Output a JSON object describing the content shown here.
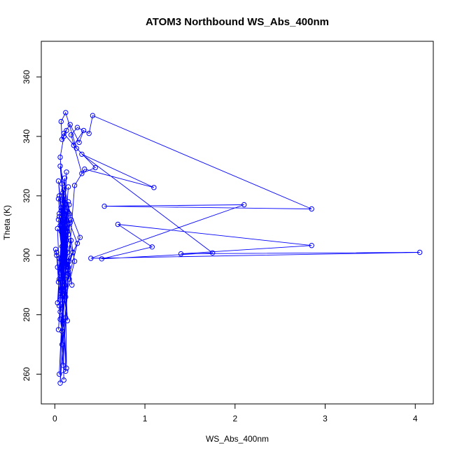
{
  "chart_data": {
    "type": "line",
    "title": "ATOM3 Northbound WS_Abs_400nm",
    "xlabel": "WS_Abs_400nm",
    "ylabel": "Theta (K)",
    "xlim": [
      -0.15,
      4.2
    ],
    "ylim": [
      250,
      372
    ],
    "x_ticks": [
      0,
      1,
      2,
      3,
      4
    ],
    "y_ticks": [
      260,
      280,
      300,
      320,
      340,
      360
    ],
    "grid": false,
    "legend": "none",
    "line_color": "#0000FF",
    "marker": "open-circle",
    "series": [
      {
        "x": [
          0.02,
          0.05,
          0.08,
          0.12,
          0.04,
          0.15,
          0.07,
          0.1,
          0.13,
          0.06,
          0.18,
          0.09,
          0.03,
          0.11,
          0.14,
          0.08,
          0.16,
          0.05,
          0.12,
          0.2,
          0.07,
          0.1,
          0.25,
          0.06,
          0.13,
          0.09,
          0.17,
          0.04,
          0.11,
          0.15,
          0.08,
          0.22,
          0.12,
          0.05,
          0.1,
          0.19,
          0.07,
          0.14,
          0.28,
          0.09,
          0.06,
          0.13,
          0.11,
          0.08,
          0.16,
          0.1,
          0.04,
          0.12,
          0.18,
          0.07,
          0.15,
          0.09,
          0.11,
          0.06,
          0.14,
          0.1,
          0.08,
          0.12,
          0.05,
          0.13,
          0.2,
          0.09,
          0.07,
          0.11,
          0.16,
          0.04,
          0.1,
          0.13,
          0.08,
          0.06,
          0.12,
          0.09,
          0.15,
          0.07,
          0.11,
          0.1,
          0.05,
          0.14,
          0.08,
          0.12,
          0.03,
          0.09,
          0.16,
          0.06,
          0.11,
          0.13,
          0.07,
          0.1,
          0.08,
          0.12,
          0.05,
          0.09,
          0.14,
          0.11,
          0.06,
          0.1,
          0.13,
          0.08,
          0.07,
          0.12,
          0.24,
          0.1,
          0.17,
          0.27,
          0.32,
          0.21,
          0.45,
          0.3,
          0.18,
          0.25,
          0.38,
          0.42,
          2.85,
          0.55,
          2.1,
          0.4,
          4.05,
          1.4,
          2.85,
          0.7,
          1.08,
          0.52,
          1.75,
          0.3,
          1.1,
          0.33,
          0.22,
          0.15,
          0.12,
          0.08,
          0.06,
          0.05,
          0.04,
          0.03,
          0.02,
          0.01
        ],
        "y": [
          301.0,
          292.0,
          286.5,
          310.0,
          275.0,
          318.0,
          296.0,
          322.0,
          305.0,
          330.0,
          312.0,
          299.0,
          284.0,
          326.0,
          308.0,
          270.0,
          314.0,
          320.0,
          295.0,
          301.0,
          288.0,
          316.0,
          304.0,
          281.0,
          328.0,
          300.0,
          311.0,
          319.0,
          292.0,
          307.0,
          324.0,
          298.0,
          286.0,
          313.0,
          302.0,
          290.0,
          315.0,
          297.0,
          306.0,
          321.0,
          294.0,
          309.0,
          285.0,
          303.0,
          317.0,
          299.0,
          312.0,
          289.0,
          305.0,
          293.0,
          323.0,
          300.0,
          287.0,
          310.0,
          296.0,
          318.0,
          291.0,
          304.0,
          314.0,
          298.0,
          301.0,
          311.0,
          288.0,
          306.0,
          292.0,
          325.0,
          302.0,
          297.0,
          313.0,
          285.0,
          308.0,
          300.0,
          294.0,
          316.0,
          290.0,
          305.0,
          299.0,
          278.0,
          320.0,
          303.0,
          309.0,
          263.0,
          298.0,
          257.0,
          312.0,
          262.0,
          296.0,
          258.0,
          295.0,
          261.0,
          260.0,
          287.0,
          301.0,
          314.0,
          333.0,
          340.0,
          342.0,
          339.0,
          345.0,
          348.0,
          336.0,
          341.0,
          344.0,
          338.0,
          342.0,
          337.0,
          329.5,
          327.5,
          340.5,
          343.0,
          341.0,
          347.0,
          315.6,
          316.5,
          317.0,
          299.0,
          301.0,
          300.5,
          303.3,
          310.4,
          302.8,
          298.8,
          300.8,
          334.0,
          322.8,
          329.0,
          323.5,
          296.0,
          279.0,
          274.5,
          278.5,
          283.0,
          291.0,
          296.0,
          300.0,
          302.0
        ]
      }
    ]
  }
}
